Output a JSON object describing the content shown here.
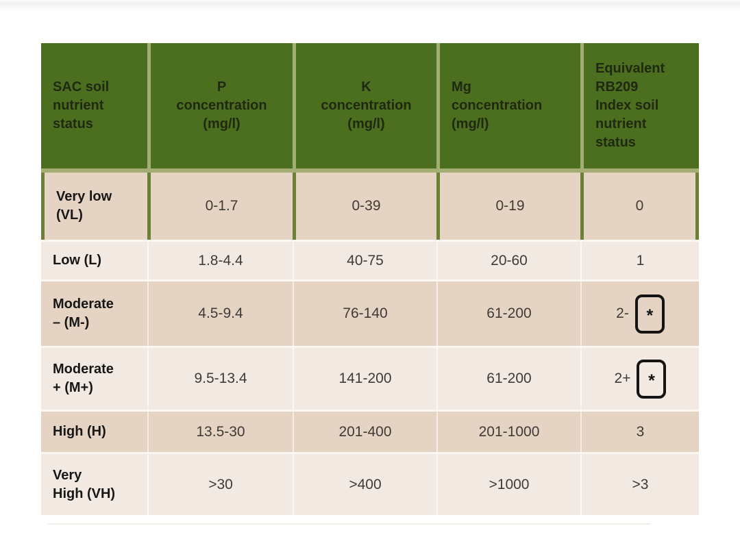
{
  "colors": {
    "header_green": "#4b6f1e",
    "header_separator_sage": "#a3ad74",
    "highlight_border_olive": "#6d8037",
    "row_dark_tan": "#e5d3c4",
    "row_light_tan": "#f2eae2",
    "header_text": "#20290f",
    "label_text": "#161616",
    "value_text": "#3f3a35"
  },
  "table": {
    "columns": [
      {
        "key": "status",
        "header": "SAC soil\nnutrient\nstatus"
      },
      {
        "key": "p",
        "header": "P\nconcentration\n(mg/l)"
      },
      {
        "key": "k",
        "header": "K\nconcentration\n(mg/l)"
      },
      {
        "key": "mg",
        "header": "Mg\nconcentration\n(mg/l)"
      },
      {
        "key": "rb209",
        "header": "Equivalent\nRB209\nIndex soil\nnutrient\nstatus"
      }
    ],
    "rows": [
      {
        "status": "Very low\n(VL)",
        "p": "0-1.7",
        "k": "0-39",
        "mg": "0-19",
        "rb209": "0"
      },
      {
        "status": "Low (L)",
        "p": "1.8-4.4",
        "k": "40-75",
        "mg": "20-60",
        "rb209": "1"
      },
      {
        "status": "Moderate\n– (M-)",
        "p": "4.5-9.4",
        "k": "76-140",
        "mg": "61-200",
        "rb209": "2-",
        "rb209_footnote": "*"
      },
      {
        "status": "Moderate\n+ (M+)",
        "p": "9.5-13.4",
        "k": "141-200",
        "mg": "61-200",
        "rb209": "2+",
        "rb209_footnote": "*"
      },
      {
        "status": "High (H)",
        "p": "13.5-30",
        "k": "201-400",
        "mg": "201-1000",
        "rb209": "3"
      },
      {
        "status": "Very\nHigh (VH)",
        "p": ">30",
        "k": ">400",
        "mg": ">1000",
        "rb209": ">3"
      }
    ]
  }
}
